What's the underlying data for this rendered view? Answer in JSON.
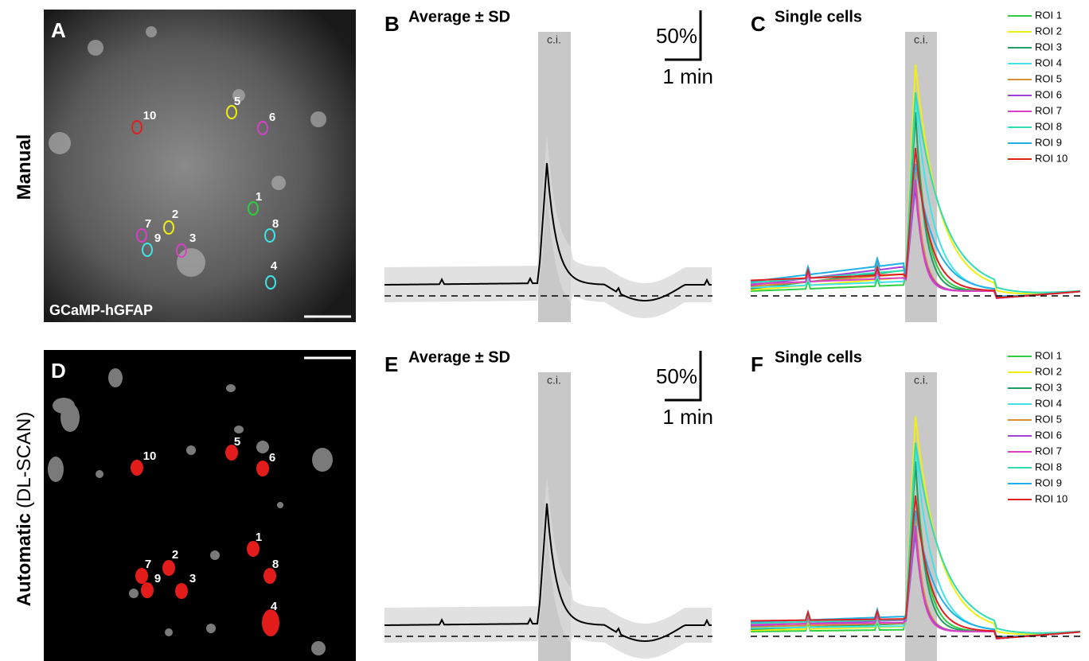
{
  "rows": [
    {
      "row_label": [
        "Manual"
      ],
      "image": {
        "letter": "A",
        "caption": "GCaMP-hGFAP",
        "rois": [
          "1",
          "2",
          "3",
          "4",
          "5",
          "6",
          "7",
          "8",
          "9",
          "10"
        ]
      },
      "average": {
        "letter": "B",
        "title": "Average ± SD",
        "ci": "c.i.",
        "scale_y": "50%",
        "scale_x": "1 min"
      },
      "single": {
        "letter": "C",
        "title": "Single cells",
        "ci": "c.i.",
        "legend": [
          "ROI 1",
          "ROI 2",
          "ROI 3",
          "ROI 4",
          "ROI 5",
          "ROI 6",
          "ROI 7",
          "ROI 8",
          "ROI 9",
          "ROI 10"
        ]
      }
    },
    {
      "row_label": [
        "Automatic",
        "(DL-SCAN)"
      ],
      "image": {
        "letter": "D",
        "rois": [
          "1",
          "2",
          "3",
          "4",
          "5",
          "6",
          "7",
          "8",
          "9",
          "10"
        ]
      },
      "average": {
        "letter": "E",
        "title": "Average ± SD",
        "ci": "c.i.",
        "scale_y": "50%",
        "scale_x": "1 min"
      },
      "single": {
        "letter": "F",
        "title": "Single cells",
        "ci": "c.i.",
        "legend": [
          "ROI 1",
          "ROI 2",
          "ROI 3",
          "ROI 4",
          "ROI 5",
          "ROI 6",
          "ROI 7",
          "ROI 8",
          "ROI 9",
          "ROI 10"
        ]
      }
    }
  ],
  "roi_colors": [
    "#2ecc40",
    "#f2ee10",
    "#1fa060",
    "#40e4e8",
    "#d99030",
    "#a040d8",
    "#d840c8",
    "#30dcb4",
    "#20b0e8",
    "#e02020"
  ]
}
